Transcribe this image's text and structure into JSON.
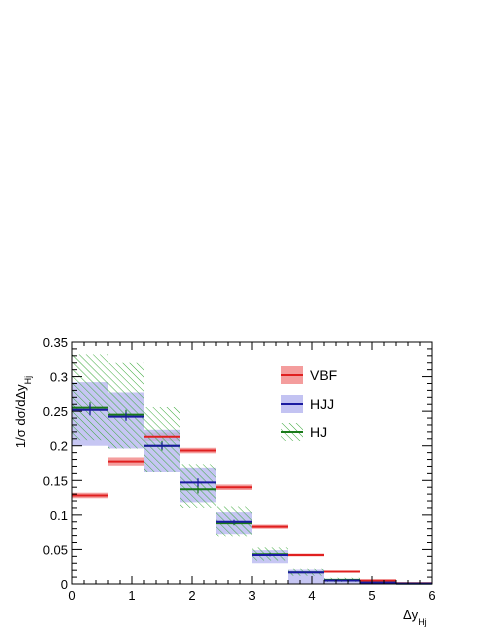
{
  "chart_data": {
    "type": "histogram",
    "xlabel_main": "Δy",
    "xlabel_sub": "Hj",
    "ylabel_main": "1/σ dσ/dΔy",
    "ylabel_sub": "Hj",
    "xlim": [
      0,
      6
    ],
    "ylim": [
      0,
      0.35
    ],
    "x_ticks": [
      "0",
      "1",
      "2",
      "3",
      "4",
      "5",
      "6"
    ],
    "y_ticks": [
      "0",
      "0.05",
      "0.1",
      "0.15",
      "0.2",
      "0.25",
      "0.3",
      "0.35"
    ],
    "legend_position": "top-right",
    "bin_edges": [
      0,
      0.6,
      1.2,
      1.8,
      2.4,
      3.0,
      3.6,
      4.2,
      4.8,
      5.4,
      6.0
    ],
    "series": [
      {
        "name": "VBF",
        "style": "solid-band",
        "color": "#e02020",
        "band_color": "#f28c8c",
        "values": [
          0.128,
          0.177,
          0.213,
          0.193,
          0.14,
          0.083,
          0.042,
          0.018,
          0.005,
          0.001
        ],
        "band_low": [
          0.124,
          0.171,
          0.207,
          0.189,
          0.136,
          0.08,
          0.04,
          0.017,
          0.004,
          0.0005
        ],
        "band_high": [
          0.132,
          0.183,
          0.219,
          0.197,
          0.144,
          0.086,
          0.044,
          0.019,
          0.006,
          0.0015
        ]
      },
      {
        "name": "HJJ",
        "style": "solid-band",
        "color": "#1a1aa0",
        "band_color": "#b8b8f0",
        "values": [
          0.252,
          0.242,
          0.2,
          0.147,
          0.09,
          0.042,
          0.017,
          0.005,
          0.002,
          0.0005
        ],
        "band_low": [
          0.2,
          0.196,
          0.162,
          0.118,
          0.072,
          0.03,
          0.0,
          0.0,
          0.0,
          0.0
        ],
        "band_high": [
          0.292,
          0.277,
          0.223,
          0.168,
          0.104,
          0.049,
          0.021,
          0.007,
          0.003,
          0.001
        ],
        "err": [
          0.008,
          0.006,
          0.005,
          0.006,
          0.003,
          0.002,
          0.001,
          0.001,
          0.0005,
          0.0003
        ]
      },
      {
        "name": "HJ",
        "style": "hatched-band",
        "color": "#1a7a1a",
        "band_color": "#33a833",
        "values": [
          0.255,
          0.245,
          0.2,
          0.137,
          0.088,
          0.043,
          0.017,
          0.006,
          0.002,
          0.0005
        ],
        "band_low": [
          0.208,
          0.196,
          0.162,
          0.11,
          0.069,
          0.034,
          0.012,
          0.003,
          0.001,
          0.0
        ],
        "band_high": [
          0.332,
          0.32,
          0.256,
          0.173,
          0.112,
          0.053,
          0.022,
          0.009,
          0.003,
          0.001
        ],
        "err": [
          0.008,
          0.007,
          0.007,
          0.006,
          0.003,
          0.002,
          0.001,
          0.001,
          0.0005,
          0.0003
        ]
      }
    ]
  }
}
